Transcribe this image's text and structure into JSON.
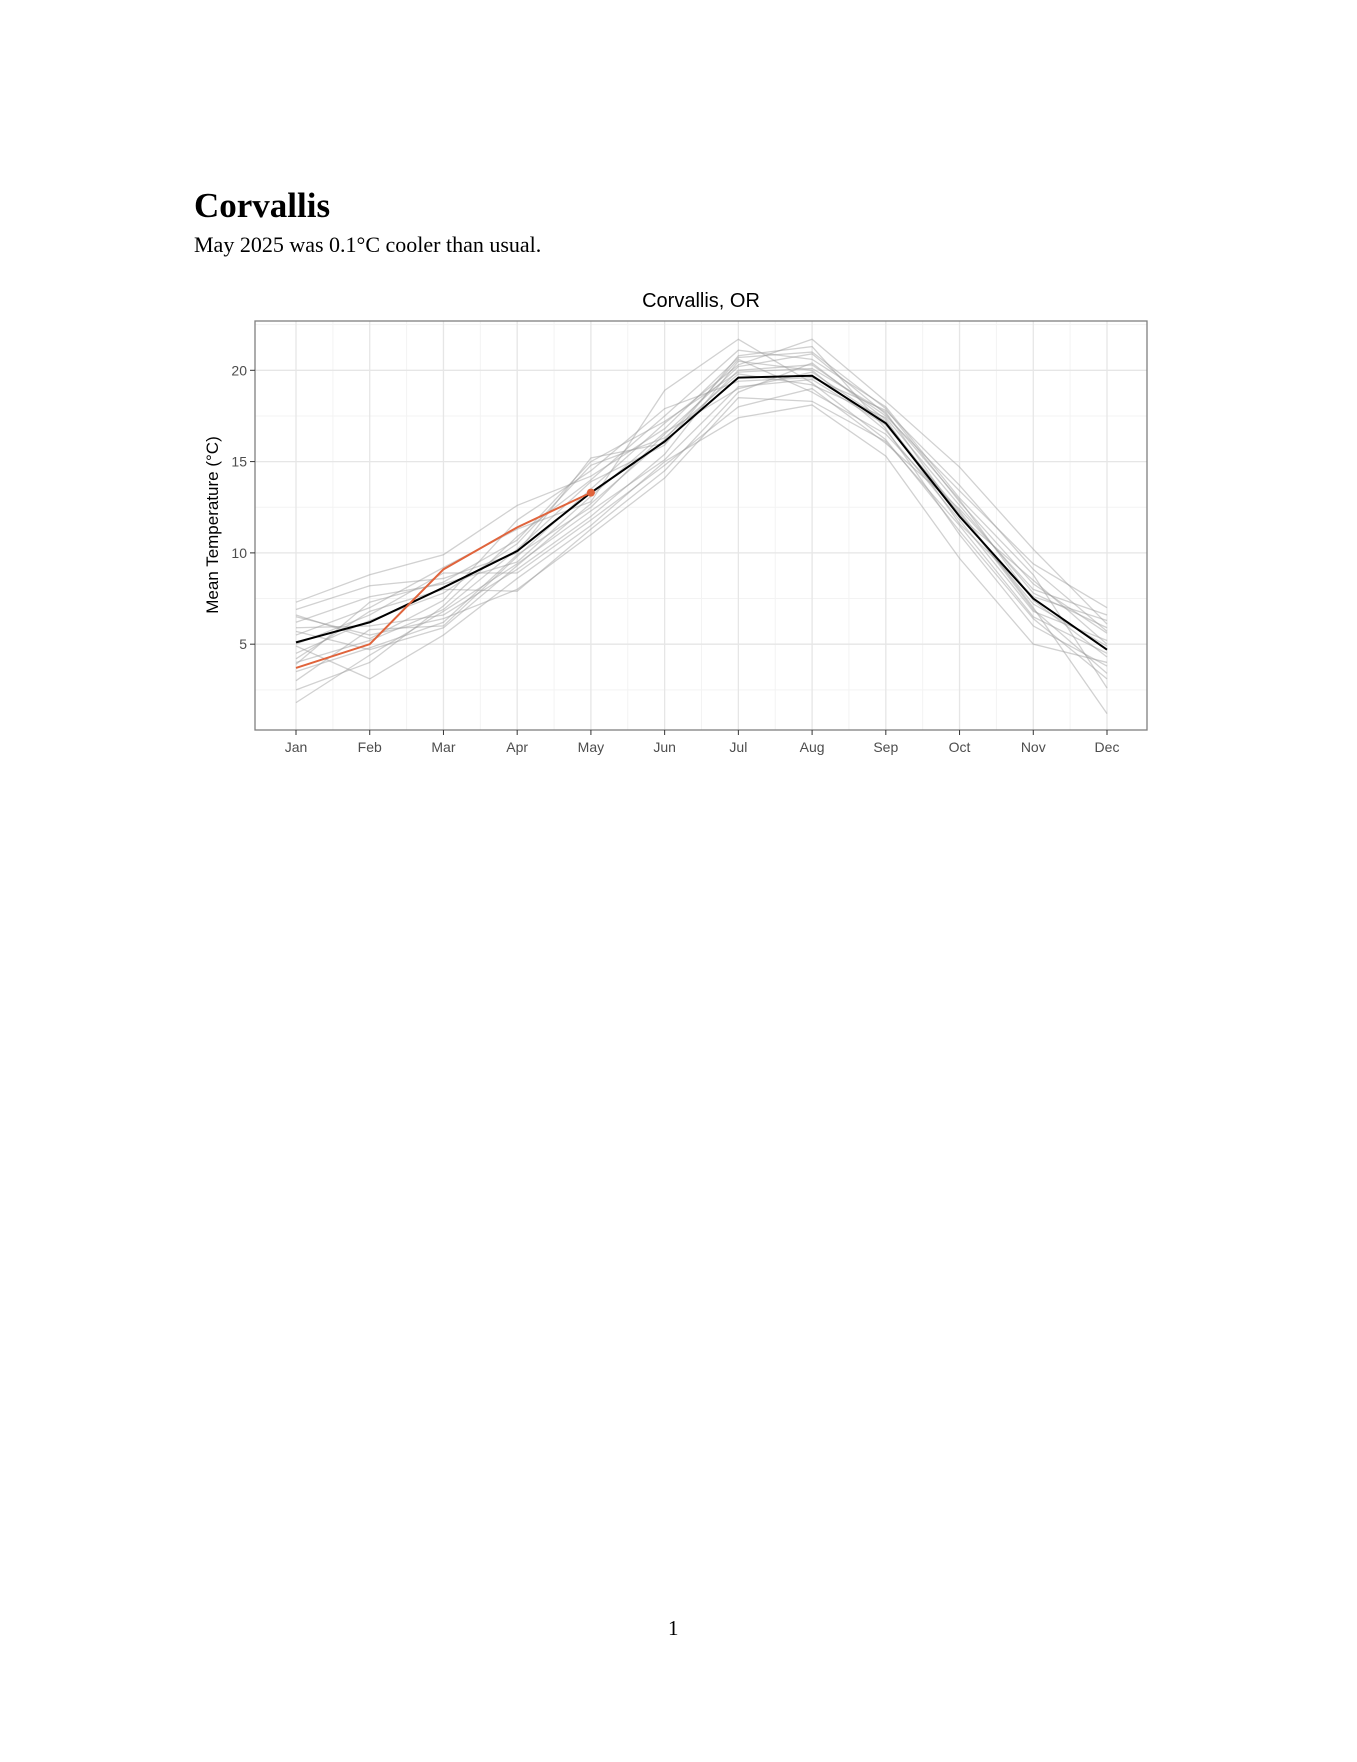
{
  "document": {
    "heading": "Corvallis",
    "subtitle": "May 2025 was 0.1°C cooler than usual.",
    "page_number": "1"
  },
  "chart_data": {
    "type": "line",
    "title": "Corvallis, OR",
    "xlabel": "",
    "ylabel": "Mean Temperature (°C)",
    "categories": [
      "Jan",
      "Feb",
      "Mar",
      "Apr",
      "May",
      "Jun",
      "Jul",
      "Aug",
      "Sep",
      "Oct",
      "Nov",
      "Dec"
    ],
    "ylim": [
      0.3,
      22.7
    ],
    "yticks": [
      5,
      10,
      15,
      20
    ],
    "grid": true,
    "colors": {
      "historical": "#999999",
      "mean": "#000000",
      "current": "#e0643c"
    },
    "mean_series": [
      5.1,
      6.2,
      8.1,
      10.1,
      13.3,
      16.1,
      19.6,
      19.7,
      17.1,
      12.0,
      7.5,
      4.7
    ],
    "current_series": [
      3.7,
      5.0,
      9.1,
      11.4,
      13.3
    ],
    "historical_series": [
      [
        7.3,
        8.8,
        9.9,
        12.6,
        14.2,
        16.8,
        20.7,
        21.0,
        17.9,
        12.8,
        8.3,
        5.6
      ],
      [
        1.8,
        4.4,
        6.8,
        9.4,
        12.3,
        15.1,
        19.1,
        19.5,
        17.0,
        12.3,
        7.0,
        1.2
      ],
      [
        6.5,
        5.5,
        6.4,
        8.0,
        11.0,
        14.1,
        18.5,
        18.3,
        16.1,
        11.5,
        6.5,
        4.5
      ],
      [
        4.9,
        3.1,
        5.5,
        8.6,
        11.5,
        15.0,
        17.4,
        18.1,
        15.3,
        9.7,
        5.0,
        4.0
      ],
      [
        6.9,
        8.2,
        8.6,
        10.0,
        15.2,
        16.0,
        20.0,
        20.3,
        17.5,
        13.4,
        9.4,
        7.0
      ],
      [
        5.5,
        7.0,
        9.2,
        11.3,
        12.8,
        18.9,
        21.7,
        19.3,
        16.2,
        11.2,
        6.4,
        3.1
      ],
      [
        3.0,
        5.8,
        6.0,
        9.8,
        13.5,
        17.1,
        20.3,
        21.7,
        18.3,
        14.7,
        10.2,
        6.1
      ],
      [
        4.5,
        6.3,
        7.8,
        10.5,
        14.8,
        16.3,
        19.8,
        19.2,
        17.4,
        12.6,
        7.8,
        5.9
      ],
      [
        5.9,
        6.0,
        6.6,
        9.1,
        12.0,
        15.4,
        20.5,
        20.0,
        16.7,
        11.8,
        6.8,
        5.2
      ],
      [
        2.5,
        4.0,
        7.1,
        10.9,
        14.0,
        17.5,
        21.1,
        20.6,
        18.0,
        13.0,
        8.8,
        2.6
      ],
      [
        6.2,
        7.6,
        8.3,
        9.5,
        13.1,
        16.6,
        19.0,
        19.9,
        17.2,
        12.1,
        7.2,
        4.9
      ],
      [
        4.0,
        5.2,
        6.9,
        10.2,
        13.9,
        15.9,
        20.8,
        21.3,
        16.8,
        11.0,
        6.0,
        3.8
      ],
      [
        5.0,
        6.6,
        8.9,
        8.9,
        11.8,
        14.8,
        18.0,
        19.0,
        16.0,
        12.4,
        8.0,
        6.6
      ],
      [
        3.5,
        4.8,
        6.2,
        9.9,
        12.5,
        16.5,
        20.2,
        20.9,
        17.6,
        12.9,
        7.4,
        4.3
      ],
      [
        6.6,
        5.3,
        7.4,
        11.8,
        14.5,
        17.9,
        19.4,
        19.6,
        17.8,
        13.7,
        9.1,
        5.7
      ],
      [
        4.2,
        6.8,
        8.0,
        7.9,
        11.3,
        14.5,
        18.8,
        20.4,
        17.3,
        11.6,
        7.6,
        6.3
      ],
      [
        5.7,
        4.7,
        5.9,
        9.3,
        12.7,
        16.2,
        20.6,
        18.8,
        16.5,
        12.2,
        6.9,
        3.4
      ],
      [
        3.9,
        7.3,
        8.4,
        10.7,
        15.0,
        17.2,
        19.9,
        20.1,
        17.7,
        12.0,
        8.5,
        5.0
      ]
    ]
  }
}
